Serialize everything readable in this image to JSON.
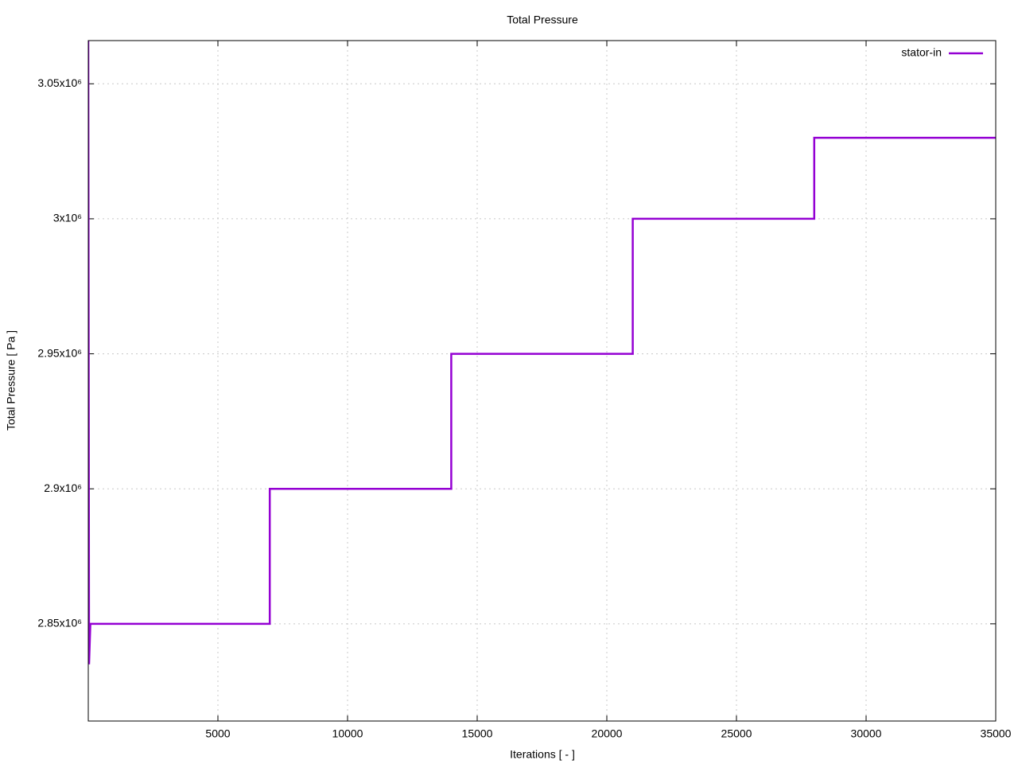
{
  "chart_data": {
    "type": "line",
    "title": "Total Pressure",
    "x_label": "Iterations [ - ]",
    "y_label": "Total Pressure [ Pa ]",
    "x": [
      0,
      30,
      80,
      7000,
      7000,
      14000,
      14000,
      21000,
      21000,
      28000,
      28000,
      35000
    ],
    "series": [
      {
        "name": "stator-in",
        "color": "#9400d3",
        "values": [
          3066000,
          2835000,
          2850000,
          2850000,
          2900000,
          2900000,
          2950000,
          2950000,
          3000000,
          3000000,
          3030000,
          3030000
        ]
      }
    ],
    "xlim": [
      0,
      35000
    ],
    "ylim": [
      2814000,
      3066000
    ],
    "xticks": [
      5000,
      10000,
      15000,
      20000,
      25000,
      30000,
      35000
    ],
    "yticks": [
      {
        "value": 2850000,
        "label": "2.85x10⁶"
      },
      {
        "value": 2900000,
        "label": "2.9x10⁶"
      },
      {
        "value": 2950000,
        "label": "2.95x10⁶"
      },
      {
        "value": 3000000,
        "label": "3x10⁶"
      },
      {
        "value": 3050000,
        "label": "3.05x10⁶"
      }
    ],
    "grid": true,
    "legend": "top-right"
  }
}
